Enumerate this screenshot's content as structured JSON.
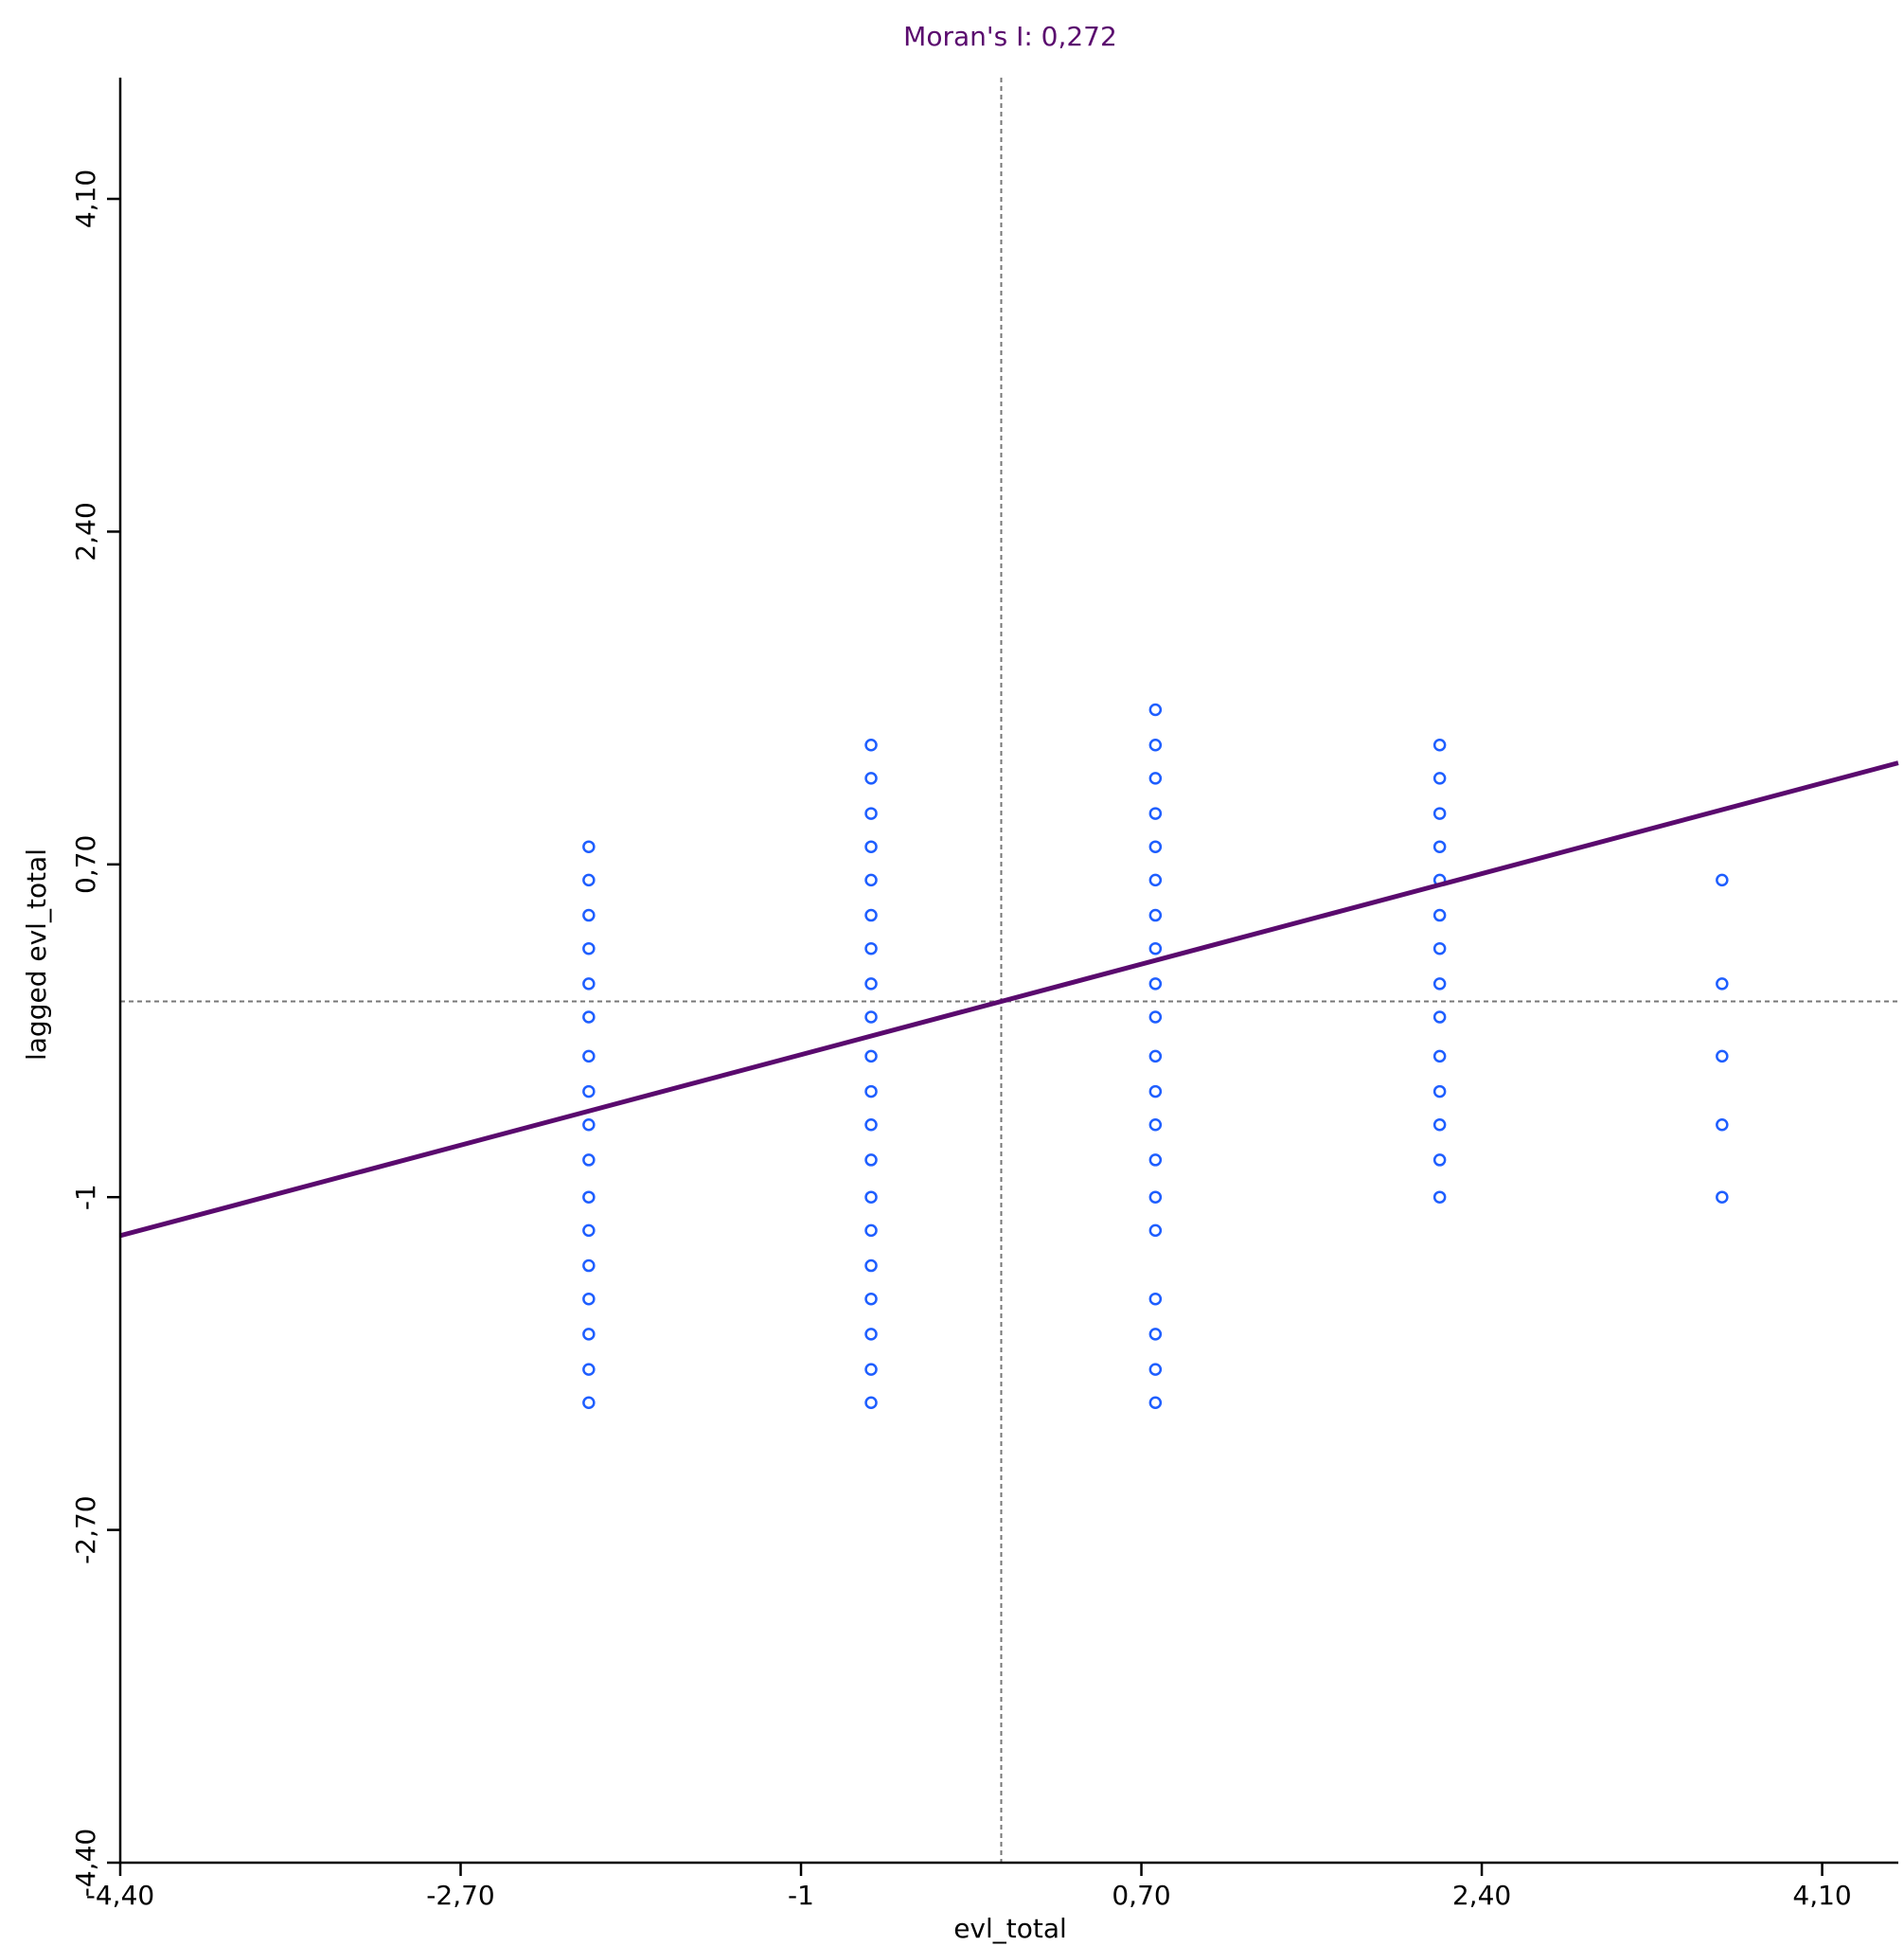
{
  "chart_data": {
    "type": "scatter",
    "title": "Moran's I: 0,272",
    "xlabel": "evl_total",
    "ylabel": "lagged evl_total",
    "xlim": [
      -4.4,
      4.4
    ],
    "ylim": [
      -4.4,
      4.4
    ],
    "xticks": [
      {
        "value": -4.4,
        "label": "-4,40"
      },
      {
        "value": -2.7,
        "label": "-2,70"
      },
      {
        "value": -1.0,
        "label": "-1"
      },
      {
        "value": 0.7,
        "label": "0,70"
      },
      {
        "value": 2.4,
        "label": "2,40"
      },
      {
        "value": 4.1,
        "label": "4,10"
      }
    ],
    "yticks": [
      {
        "value": -4.4,
        "label": "-4,40"
      },
      {
        "value": -2.7,
        "label": "-2,70"
      },
      {
        "value": -1.0,
        "label": "-1"
      },
      {
        "value": 0.7,
        "label": "0,70"
      },
      {
        "value": 2.4,
        "label": "2,40"
      },
      {
        "value": 4.1,
        "label": "4,10"
      }
    ],
    "reference_lines": {
      "x": 0.0,
      "y": 0.0
    },
    "regression_line": {
      "slope": 0.272,
      "intercept": 0.0
    },
    "grid": false,
    "colors": {
      "points": "#1e5eff",
      "regression": "#5a0a6e",
      "title": "#5a0a6e",
      "reference": "#777777"
    },
    "points": [
      {
        "x": -2.06,
        "y": 0.79
      },
      {
        "x": -2.06,
        "y": 0.62
      },
      {
        "x": -2.06,
        "y": 0.44
      },
      {
        "x": -2.06,
        "y": 0.27
      },
      {
        "x": -2.06,
        "y": 0.09
      },
      {
        "x": -2.06,
        "y": -0.08
      },
      {
        "x": -2.06,
        "y": -0.28
      },
      {
        "x": -2.06,
        "y": -0.46
      },
      {
        "x": -2.06,
        "y": -0.63
      },
      {
        "x": -2.06,
        "y": -0.81
      },
      {
        "x": -2.06,
        "y": -1.0
      },
      {
        "x": -2.06,
        "y": -1.17
      },
      {
        "x": -2.06,
        "y": -1.35
      },
      {
        "x": -2.06,
        "y": -1.52
      },
      {
        "x": -2.06,
        "y": -1.7
      },
      {
        "x": -2.06,
        "y": -1.88
      },
      {
        "x": -2.06,
        "y": -2.05
      },
      {
        "x": -0.65,
        "y": 1.31
      },
      {
        "x": -0.65,
        "y": 1.14
      },
      {
        "x": -0.65,
        "y": 0.96
      },
      {
        "x": -0.65,
        "y": 0.79
      },
      {
        "x": -0.65,
        "y": 0.62
      },
      {
        "x": -0.65,
        "y": 0.44
      },
      {
        "x": -0.65,
        "y": 0.27
      },
      {
        "x": -0.65,
        "y": 0.09
      },
      {
        "x": -0.65,
        "y": -0.08
      },
      {
        "x": -0.65,
        "y": -0.28
      },
      {
        "x": -0.65,
        "y": -0.46
      },
      {
        "x": -0.65,
        "y": -0.63
      },
      {
        "x": -0.65,
        "y": -0.81
      },
      {
        "x": -0.65,
        "y": -1.0
      },
      {
        "x": -0.65,
        "y": -1.17
      },
      {
        "x": -0.65,
        "y": -1.35
      },
      {
        "x": -0.65,
        "y": -1.52
      },
      {
        "x": -0.65,
        "y": -1.7
      },
      {
        "x": -0.65,
        "y": -1.88
      },
      {
        "x": -0.65,
        "y": -2.05
      },
      {
        "x": 0.77,
        "y": 1.49
      },
      {
        "x": 0.77,
        "y": 1.31
      },
      {
        "x": 0.77,
        "y": 1.14
      },
      {
        "x": 0.77,
        "y": 0.96
      },
      {
        "x": 0.77,
        "y": 0.79
      },
      {
        "x": 0.77,
        "y": 0.62
      },
      {
        "x": 0.77,
        "y": 0.44
      },
      {
        "x": 0.77,
        "y": 0.27
      },
      {
        "x": 0.77,
        "y": 0.09
      },
      {
        "x": 0.77,
        "y": -0.08
      },
      {
        "x": 0.77,
        "y": -0.28
      },
      {
        "x": 0.77,
        "y": -0.46
      },
      {
        "x": 0.77,
        "y": -0.63
      },
      {
        "x": 0.77,
        "y": -0.81
      },
      {
        "x": 0.77,
        "y": -1.0
      },
      {
        "x": 0.77,
        "y": -1.17
      },
      {
        "x": 0.77,
        "y": -1.52
      },
      {
        "x": 0.77,
        "y": -1.7
      },
      {
        "x": 0.77,
        "y": -1.88
      },
      {
        "x": 0.77,
        "y": -2.05
      },
      {
        "x": 2.19,
        "y": 1.31
      },
      {
        "x": 2.19,
        "y": 1.14
      },
      {
        "x": 2.19,
        "y": 0.96
      },
      {
        "x": 2.19,
        "y": 0.79
      },
      {
        "x": 2.19,
        "y": 0.62
      },
      {
        "x": 2.19,
        "y": 0.44
      },
      {
        "x": 2.19,
        "y": 0.27
      },
      {
        "x": 2.19,
        "y": 0.09
      },
      {
        "x": 2.19,
        "y": -0.08
      },
      {
        "x": 2.19,
        "y": -0.28
      },
      {
        "x": 2.19,
        "y": -0.46
      },
      {
        "x": 2.19,
        "y": -0.63
      },
      {
        "x": 2.19,
        "y": -0.81
      },
      {
        "x": 2.19,
        "y": -1.0
      },
      {
        "x": 3.6,
        "y": 0.62
      },
      {
        "x": 3.6,
        "y": 0.09
      },
      {
        "x": 3.6,
        "y": -0.28
      },
      {
        "x": 3.6,
        "y": -0.63
      },
      {
        "x": 3.6,
        "y": -1.0
      }
    ]
  }
}
